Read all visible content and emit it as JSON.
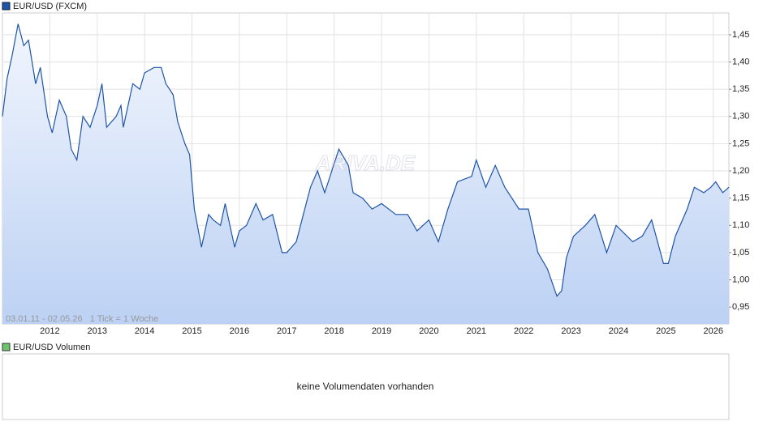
{
  "chart_data": {
    "type": "line",
    "series": [
      {
        "name": "EUR/USD (FXCM)",
        "color": "#1f54a8",
        "x": [
          2011.0,
          2011.1,
          2011.2,
          2011.33,
          2011.45,
          2011.55,
          2011.7,
          2011.8,
          2011.95,
          2012.05,
          2012.2,
          2012.35,
          2012.45,
          2012.57,
          2012.7,
          2012.85,
          2013.0,
          2013.1,
          2013.2,
          2013.4,
          2013.5,
          2013.55,
          2013.75,
          2013.9,
          2014.0,
          2014.2,
          2014.35,
          2014.45,
          2014.6,
          2014.7,
          2014.85,
          2014.95,
          2015.05,
          2015.2,
          2015.35,
          2015.45,
          2015.6,
          2015.7,
          2015.9,
          2016.0,
          2016.15,
          2016.35,
          2016.5,
          2016.7,
          2016.9,
          2017.0,
          2017.2,
          2017.35,
          2017.5,
          2017.65,
          2017.8,
          2017.95,
          2018.1,
          2018.3,
          2018.4,
          2018.6,
          2018.8,
          2019.0,
          2019.3,
          2019.55,
          2019.75,
          2020.0,
          2020.2,
          2020.4,
          2020.6,
          2020.9,
          2021.0,
          2021.2,
          2021.4,
          2021.6,
          2021.9,
          2022.1,
          2022.3,
          2022.5,
          2022.7,
          2022.8,
          2022.9,
          2023.05,
          2023.3,
          2023.5,
          2023.75,
          2023.95,
          2024.3,
          2024.5,
          2024.7,
          2024.95,
          2025.05,
          2025.2,
          2025.45,
          2025.6,
          2025.8,
          2025.95,
          2026.05,
          2026.2,
          2026.33
        ],
        "values": [
          1.3,
          1.37,
          1.41,
          1.47,
          1.43,
          1.44,
          1.36,
          1.39,
          1.3,
          1.27,
          1.33,
          1.3,
          1.24,
          1.22,
          1.3,
          1.28,
          1.32,
          1.36,
          1.28,
          1.3,
          1.32,
          1.28,
          1.36,
          1.35,
          1.38,
          1.39,
          1.39,
          1.36,
          1.34,
          1.29,
          1.25,
          1.23,
          1.13,
          1.06,
          1.12,
          1.11,
          1.1,
          1.14,
          1.06,
          1.09,
          1.1,
          1.14,
          1.11,
          1.12,
          1.05,
          1.05,
          1.07,
          1.12,
          1.17,
          1.2,
          1.16,
          1.2,
          1.24,
          1.21,
          1.16,
          1.15,
          1.13,
          1.14,
          1.12,
          1.12,
          1.09,
          1.11,
          1.07,
          1.13,
          1.18,
          1.19,
          1.22,
          1.17,
          1.21,
          1.17,
          1.13,
          1.13,
          1.05,
          1.02,
          0.97,
          0.98,
          1.04,
          1.08,
          1.1,
          1.12,
          1.05,
          1.1,
          1.07,
          1.08,
          1.11,
          1.03,
          1.03,
          1.08,
          1.13,
          1.17,
          1.16,
          1.17,
          1.18,
          1.16,
          1.17
        ]
      }
    ],
    "xlim": [
      2011.0,
      2026.33
    ],
    "xticks": [
      2012,
      2013,
      2014,
      2015,
      2016,
      2017,
      2018,
      2019,
      2020,
      2021,
      2022,
      2023,
      2024,
      2025,
      2026
    ],
    "ylim": [
      0.919,
      1.49
    ],
    "yticks": [
      {
        "value": 0.95,
        "label": "0,95"
      },
      {
        "value": 1.0,
        "label": "1,00"
      },
      {
        "value": 1.05,
        "label": "1,05"
      },
      {
        "value": 1.1,
        "label": "1,10"
      },
      {
        "value": 1.15,
        "label": "1,15"
      },
      {
        "value": 1.2,
        "label": "1,20"
      },
      {
        "value": 1.25,
        "label": "1,25"
      },
      {
        "value": 1.3,
        "label": "1,30"
      },
      {
        "value": 1.35,
        "label": "1,35"
      },
      {
        "value": 1.4,
        "label": "1,40"
      },
      {
        "value": 1.45,
        "label": "1,45"
      }
    ],
    "grid": true,
    "range_label": "03.01.11 - 02.05.26   1 Tick = 1 Woche",
    "watermark": "ARIVA.DE",
    "volume_legend": "EUR/USD Volumen",
    "volume_legend_color": "#6cc46c",
    "volume_message": "keine Volumendaten vorhanden"
  }
}
